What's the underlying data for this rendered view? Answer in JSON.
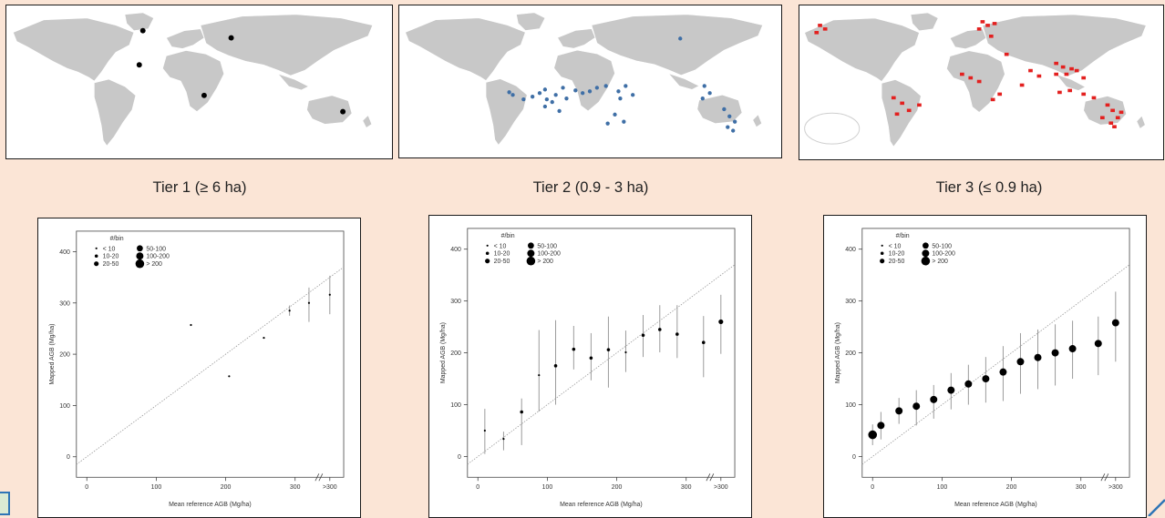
{
  "tiers": [
    {
      "label": "Tier 1 (≥ 6 ha)",
      "marker_color": "#000000"
    },
    {
      "label": "Tier 2 (0.9 - 3 ha)",
      "marker_color": "#3f6fa6"
    },
    {
      "label": "Tier 3 (≤ 0.9 ha)",
      "marker_color": "#e3201f"
    }
  ],
  "legend": {
    "title": "#/bin",
    "items": [
      "< 10",
      "10-20",
      "20-50",
      "50-100",
      "100-200",
      "> 200"
    ]
  },
  "chart_data": [
    {
      "type": "scatter",
      "title": "",
      "xlabel": "Mean reference AGB (Mg/ha)",
      "ylabel": "Mapped AGB (Mg/ha)",
      "xlim": [
        -15,
        370
      ],
      "ylim": [
        -40,
        440
      ],
      "x_ticks": [
        "0",
        "100",
        "200",
        "300",
        ">300"
      ],
      "y_ticks": [
        0,
        100,
        200,
        300,
        400
      ],
      "reference_line": "1:1",
      "points": [
        {
          "x": 150,
          "y": 257,
          "low": 257,
          "high": 257,
          "bin": "< 10"
        },
        {
          "x": 205,
          "y": 157,
          "low": 157,
          "high": 157,
          "bin": "< 10"
        },
        {
          "x": 255,
          "y": 232,
          "low": 232,
          "high": 232,
          "bin": "< 10"
        },
        {
          "x": 292,
          "y": 285,
          "low": 275,
          "high": 295,
          "bin": "< 10"
        },
        {
          "x": 320,
          "y": 300,
          "low": 263,
          "high": 330,
          "bin": "< 10"
        },
        {
          "x": ">300",
          "y": 316,
          "low": 278,
          "high": 353,
          "bin": "< 10"
        }
      ]
    },
    {
      "type": "scatter",
      "title": "",
      "xlabel": "Mean reference AGB (Mg/ha)",
      "ylabel": "Mapped AGB (Mg/ha)",
      "xlim": [
        -15,
        370
      ],
      "ylim": [
        -40,
        440
      ],
      "x_ticks": [
        "0",
        "100",
        "200",
        "300",
        ">300"
      ],
      "y_ticks": [
        0,
        100,
        200,
        300,
        400
      ],
      "reference_line": "1:1",
      "points": [
        {
          "x": 10,
          "y": 50,
          "low": 5,
          "high": 92,
          "bin": "< 10"
        },
        {
          "x": 37,
          "y": 34,
          "low": 12,
          "high": 48,
          "bin": "< 10"
        },
        {
          "x": 63,
          "y": 86,
          "low": 22,
          "high": 112,
          "bin": "10-20"
        },
        {
          "x": 88,
          "y": 157,
          "low": 87,
          "high": 244,
          "bin": "< 10"
        },
        {
          "x": 112,
          "y": 175,
          "low": 100,
          "high": 263,
          "bin": "10-20"
        },
        {
          "x": 138,
          "y": 207,
          "low": 168,
          "high": 252,
          "bin": "10-20"
        },
        {
          "x": 163,
          "y": 190,
          "low": 147,
          "high": 238,
          "bin": "10-20"
        },
        {
          "x": 188,
          "y": 206,
          "low": 133,
          "high": 270,
          "bin": "10-20"
        },
        {
          "x": 213,
          "y": 201,
          "low": 163,
          "high": 243,
          "bin": "< 10"
        },
        {
          "x": 238,
          "y": 234,
          "low": 192,
          "high": 273,
          "bin": "10-20"
        },
        {
          "x": 262,
          "y": 245,
          "low": 201,
          "high": 292,
          "bin": "10-20"
        },
        {
          "x": 287,
          "y": 236,
          "low": 190,
          "high": 292,
          "bin": "10-20"
        },
        {
          "x": 325,
          "y": 220,
          "low": 153,
          "high": 271,
          "bin": "10-20"
        },
        {
          "x": ">300",
          "y": 260,
          "low": 198,
          "high": 312,
          "bin": "20-50"
        }
      ]
    },
    {
      "type": "scatter",
      "title": "",
      "xlabel": "Mean reference AGB (Mg/ha)",
      "ylabel": "Mapped AGB (Mg/ha)",
      "xlim": [
        -15,
        370
      ],
      "ylim": [
        -40,
        440
      ],
      "x_ticks": [
        "0",
        "100",
        "200",
        "300",
        ">300"
      ],
      "y_ticks": [
        0,
        100,
        200,
        300,
        400
      ],
      "reference_line": "1:1",
      "points": [
        {
          "x": 0,
          "y": 42,
          "low": 22,
          "high": 62,
          "bin": "> 200"
        },
        {
          "x": 12,
          "y": 60,
          "low": 33,
          "high": 86,
          "bin": "100-200"
        },
        {
          "x": 38,
          "y": 88,
          "low": 63,
          "high": 113,
          "bin": "100-200"
        },
        {
          "x": 63,
          "y": 97,
          "low": 60,
          "high": 128,
          "bin": "100-200"
        },
        {
          "x": 88,
          "y": 110,
          "low": 73,
          "high": 138,
          "bin": "100-200"
        },
        {
          "x": 113,
          "y": 128,
          "low": 91,
          "high": 161,
          "bin": "100-200"
        },
        {
          "x": 138,
          "y": 140,
          "low": 100,
          "high": 177,
          "bin": "100-200"
        },
        {
          "x": 163,
          "y": 150,
          "low": 104,
          "high": 192,
          "bin": "100-200"
        },
        {
          "x": 188,
          "y": 163,
          "low": 107,
          "high": 213,
          "bin": "100-200"
        },
        {
          "x": 213,
          "y": 183,
          "low": 121,
          "high": 238,
          "bin": "100-200"
        },
        {
          "x": 238,
          "y": 191,
          "low": 130,
          "high": 245,
          "bin": "100-200"
        },
        {
          "x": 263,
          "y": 200,
          "low": 137,
          "high": 255,
          "bin": "100-200"
        },
        {
          "x": 288,
          "y": 208,
          "low": 150,
          "high": 262,
          "bin": "100-200"
        },
        {
          "x": 325,
          "y": 218,
          "low": 157,
          "high": 270,
          "bin": "100-200"
        },
        {
          "x": ">300",
          "y": 258,
          "low": 183,
          "high": 318,
          "bin": "100-200"
        }
      ]
    }
  ]
}
